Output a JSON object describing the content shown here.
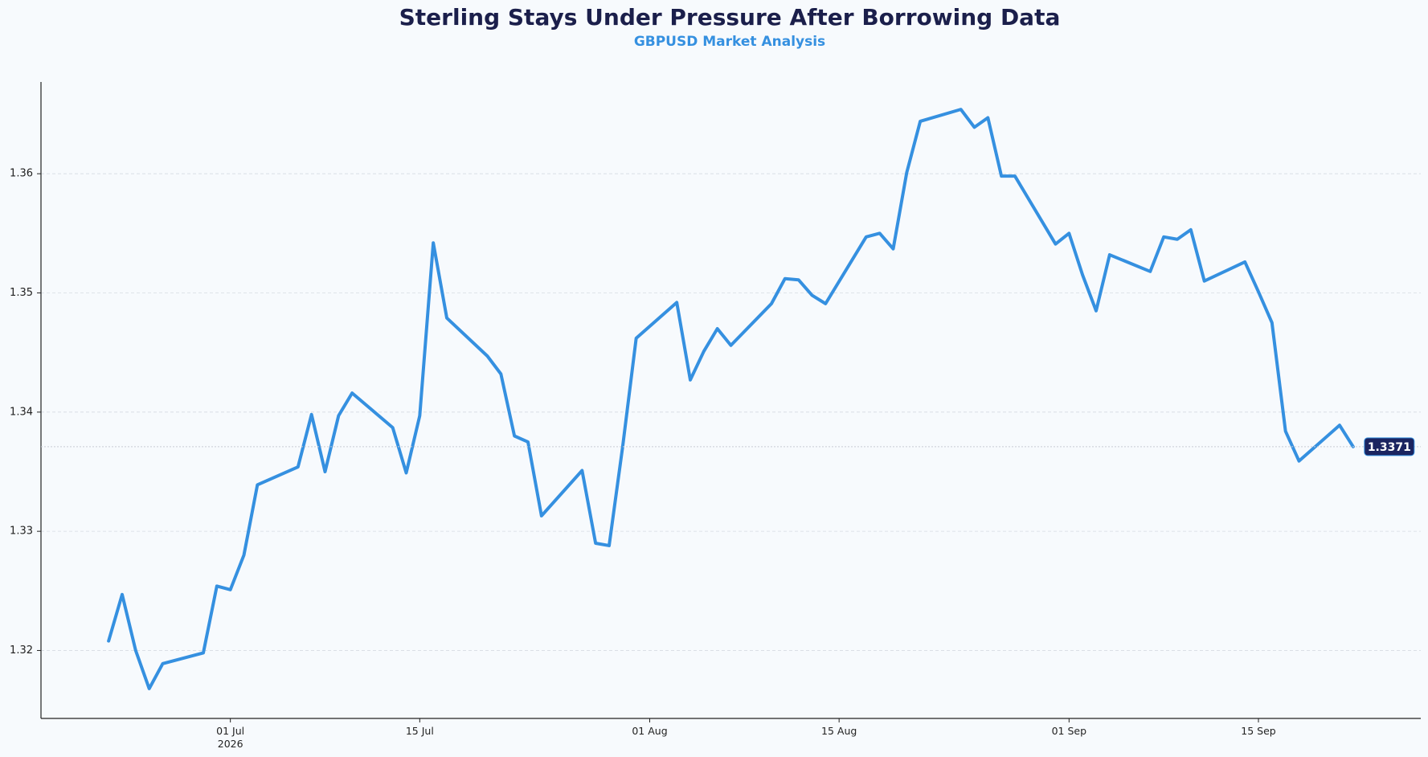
{
  "chart_data": {
    "type": "line",
    "title": "Sterling Stays Under Pressure After Borrowing Data",
    "subtitle": "GBPUSD Market Analysis",
    "x": [
      "2026-06-22",
      "2026-06-23",
      "2026-06-24",
      "2026-06-25",
      "2026-06-26",
      "2026-06-29",
      "2026-06-30",
      "2026-07-01",
      "2026-07-02",
      "2026-07-03",
      "2026-07-06",
      "2026-07-07",
      "2026-07-08",
      "2026-07-09",
      "2026-07-10",
      "2026-07-13",
      "2026-07-14",
      "2026-07-15",
      "2026-07-16",
      "2026-07-17",
      "2026-07-20",
      "2026-07-21",
      "2026-07-22",
      "2026-07-23",
      "2026-07-24",
      "2026-07-27",
      "2026-07-28",
      "2026-07-29",
      "2026-07-30",
      "2026-07-31",
      "2026-08-03",
      "2026-08-04",
      "2026-08-05",
      "2026-08-06",
      "2026-08-07",
      "2026-08-10",
      "2026-08-11",
      "2026-08-12",
      "2026-08-13",
      "2026-08-14",
      "2026-08-17",
      "2026-08-18",
      "2026-08-19",
      "2026-08-20",
      "2026-08-21",
      "2026-08-24",
      "2026-08-25",
      "2026-08-26",
      "2026-08-27",
      "2026-08-28",
      "2026-08-31",
      "2026-09-01",
      "2026-09-02",
      "2026-09-03",
      "2026-09-04",
      "2026-09-07",
      "2026-09-08",
      "2026-09-09",
      "2026-09-10",
      "2026-09-11",
      "2026-09-14",
      "2026-09-15",
      "2026-09-16",
      "2026-09-17",
      "2026-09-18",
      "2026-09-21",
      "2026-09-22"
    ],
    "series": [
      {
        "name": "GBPUSD",
        "color": "#3590e0",
        "values": [
          1.3208,
          1.3247,
          1.32,
          1.3168,
          1.3189,
          1.3198,
          1.3254,
          1.3251,
          1.328,
          1.3339,
          1.3354,
          1.3398,
          1.335,
          1.3397,
          1.3416,
          1.3387,
          1.3349,
          1.3397,
          1.3542,
          1.3479,
          1.3447,
          1.3432,
          1.338,
          1.3375,
          1.3313,
          1.3351,
          1.329,
          1.3288,
          1.3371,
          1.3462,
          1.3492,
          1.3427,
          1.3451,
          1.347,
          1.3456,
          1.3491,
          1.3512,
          1.3511,
          1.3498,
          1.3491,
          1.3547,
          1.355,
          1.3537,
          1.3601,
          1.3644,
          1.3654,
          1.3639,
          1.3647,
          1.3598,
          1.3598,
          1.3541,
          1.355,
          1.3515,
          1.3485,
          1.3532,
          1.3518,
          1.3547,
          1.3545,
          1.3553,
          1.351,
          1.3526,
          1.3501,
          1.3475,
          1.3384,
          1.3359,
          1.3389,
          1.3371
        ]
      }
    ],
    "last_label": "1.3371",
    "xlim": [
      "2026-06-17",
      "2026-09-27"
    ],
    "xticks": [
      {
        "value": "2026-07-01",
        "label": "01 Jul\n2026"
      },
      {
        "value": "2026-07-15",
        "label": "15 Jul"
      },
      {
        "value": "2026-08-01",
        "label": "01 Aug"
      },
      {
        "value": "2026-08-15",
        "label": "15 Aug"
      },
      {
        "value": "2026-09-01",
        "label": "01 Sep"
      },
      {
        "value": "2026-09-15",
        "label": "15 Sep"
      }
    ],
    "ylim": [
      1.3143,
      1.3677
    ],
    "yticks": [
      1.32,
      1.33,
      1.34,
      1.35,
      1.36
    ],
    "grid": true
  }
}
